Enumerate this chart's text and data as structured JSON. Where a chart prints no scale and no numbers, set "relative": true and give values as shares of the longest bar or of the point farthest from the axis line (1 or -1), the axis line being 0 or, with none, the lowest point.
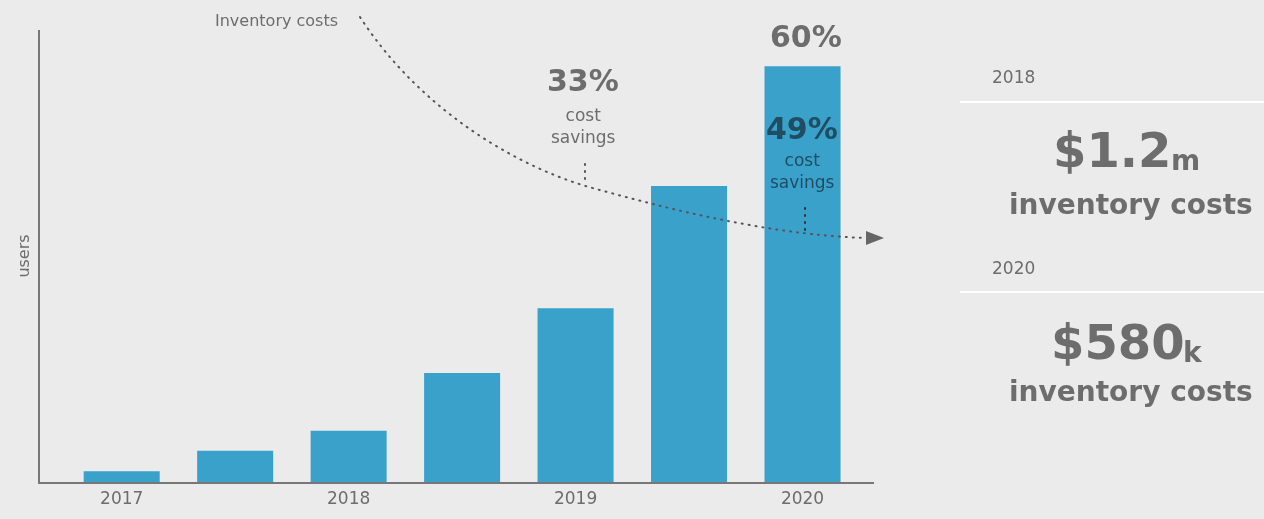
{
  "chart_data": {
    "type": "bar",
    "ylabel": "users",
    "categories": [
      "2017",
      null,
      "2018",
      null,
      "2019",
      null,
      "2020"
    ],
    "values": [
      0.026,
      0.075,
      0.123,
      0.262,
      0.418,
      0.712,
      1
    ],
    "color": "#3aa1cb",
    "relative": true,
    "grid": false,
    "annotations": [
      "Inventory costs",
      "60%",
      "33%",
      "cost\nsavings",
      "49%",
      "cost\nsavings",
      "2018",
      "$1.2",
      "m",
      "inventory costs",
      "2020",
      "$580",
      "k",
      "inventory costs"
    ]
  }
}
